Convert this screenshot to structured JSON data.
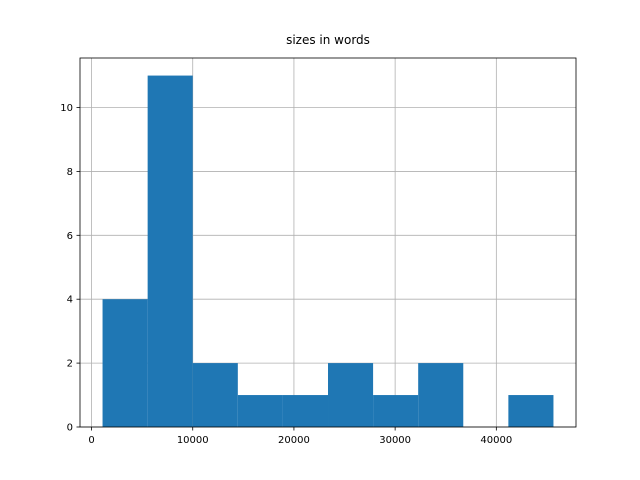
{
  "chart_data": {
    "type": "histogram",
    "title": "sizes in words",
    "bins": [
      1089,
      5545,
      10000,
      14456,
      18911,
      23367,
      27822,
      32278,
      36733,
      41189,
      45644
    ],
    "values": [
      4,
      11,
      2,
      1,
      1,
      2,
      1,
      2,
      0,
      1
    ],
    "color": "#1f77b4",
    "xlim": [
      -1139,
      47872
    ],
    "xticks": [
      0,
      10000,
      20000,
      30000,
      40000
    ],
    "ylim": [
      0,
      11.55
    ],
    "yticks": [
      0,
      2,
      4,
      6,
      8,
      10
    ],
    "grid": true
  }
}
